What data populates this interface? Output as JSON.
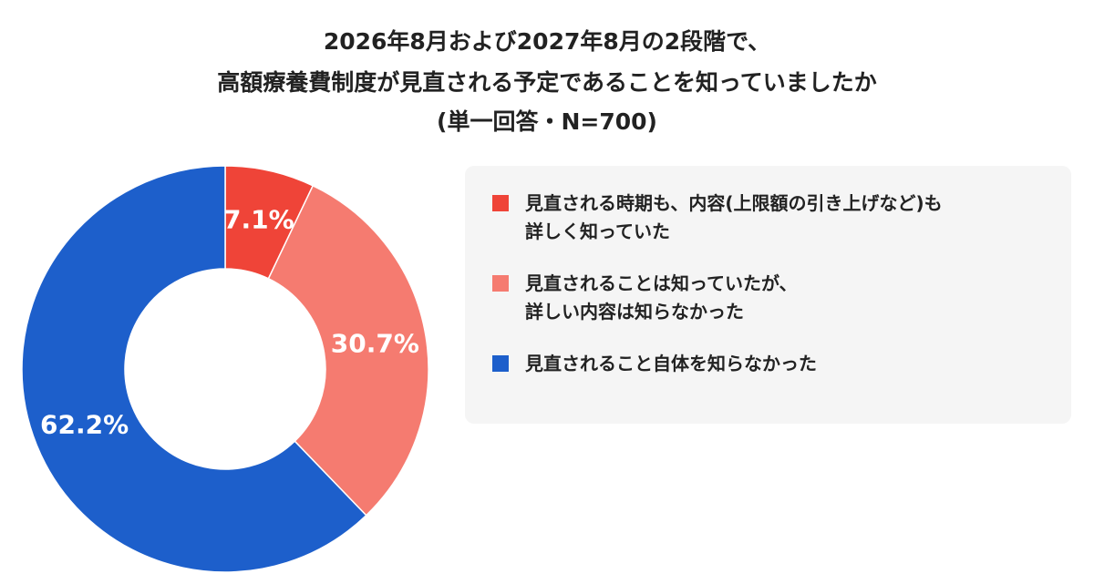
{
  "chart_data": {
    "type": "pie",
    "title": [
      "2026年8月および2027年8月の2段階で、",
      "高額療養費制度が見直される予定であることを知っていましたか"
    ],
    "subtitle": "(単一回答・N=700)",
    "categories": [
      "見直される時期も、内容(上限額の引き上げなど)も\n詳しく知っていた",
      "見直されることは知っていたが、\n詳しい内容は知らなかった",
      "見直されること自体を知らなかった"
    ],
    "values": [
      7.1,
      30.7,
      62.2
    ],
    "value_labels": [
      "7.1%",
      "30.7%",
      "62.2%"
    ],
    "colors": [
      "#ef4438",
      "#f57b70",
      "#1d5fcb"
    ]
  }
}
